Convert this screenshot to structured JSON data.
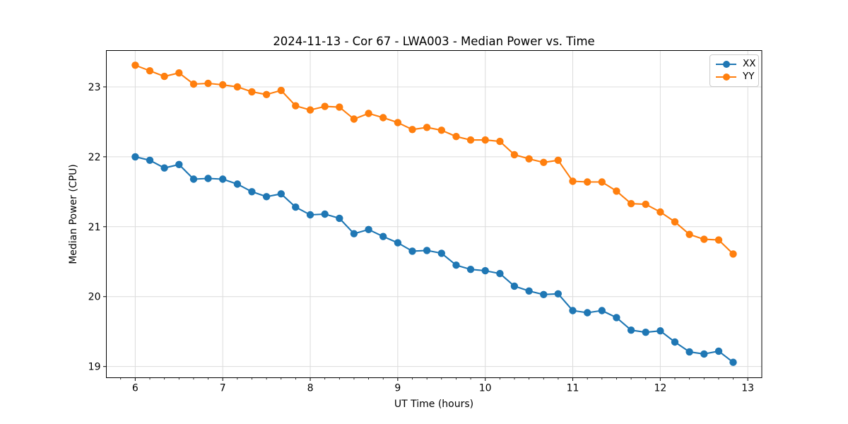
{
  "figure": {
    "background": "#ffffff"
  },
  "chart_data": {
    "type": "line",
    "title": "2024-11-13 - Cor 67 - LWA003 - Median Power vs. Time",
    "xlabel": "UT Time (hours)",
    "ylabel": "Median Power (CPU)",
    "xlim": [
      5.67,
      13.16
    ],
    "ylim": [
      18.84,
      23.52
    ],
    "x_ticks": [
      6,
      7,
      8,
      9,
      10,
      11,
      12,
      13
    ],
    "y_ticks": [
      19,
      20,
      21,
      22,
      23
    ],
    "x_minor_tick_step": 0.16667,
    "grid": true,
    "grid_color": "#dcdcdc",
    "axis_color": "#000000",
    "legend": {
      "position": "upper right",
      "entries": [
        "XX",
        "YY"
      ]
    },
    "x": [
      6.0,
      6.167,
      6.333,
      6.5,
      6.667,
      6.833,
      7.0,
      7.167,
      7.333,
      7.5,
      7.667,
      7.833,
      8.0,
      8.167,
      8.333,
      8.5,
      8.667,
      8.833,
      9.0,
      9.167,
      9.333,
      9.5,
      9.667,
      9.833,
      10.0,
      10.167,
      10.333,
      10.5,
      10.667,
      10.833,
      11.0,
      11.167,
      11.333,
      11.5,
      11.667,
      11.833,
      12.0,
      12.167,
      12.333,
      12.5,
      12.667,
      12.833
    ],
    "series": [
      {
        "name": "XX",
        "color": "#1f77b4",
        "marker": "circle",
        "values": [
          22.0,
          21.95,
          21.84,
          21.89,
          21.68,
          21.69,
          21.68,
          21.61,
          21.5,
          21.43,
          21.47,
          21.28,
          21.17,
          21.18,
          21.12,
          20.9,
          20.96,
          20.86,
          20.77,
          20.65,
          20.66,
          20.62,
          20.45,
          20.39,
          20.37,
          20.33,
          20.15,
          20.08,
          20.03,
          20.04,
          19.8,
          19.77,
          19.8,
          19.7,
          19.52,
          19.49,
          19.51,
          19.35,
          19.21,
          19.18,
          19.22,
          19.06
        ]
      },
      {
        "name": "YY",
        "color": "#ff7f0e",
        "marker": "circle",
        "values": [
          23.31,
          23.23,
          23.15,
          23.2,
          23.04,
          23.05,
          23.03,
          23.0,
          22.93,
          22.89,
          22.95,
          22.73,
          22.67,
          22.72,
          22.71,
          22.54,
          22.62,
          22.56,
          22.49,
          22.39,
          22.42,
          22.38,
          22.29,
          22.24,
          22.24,
          22.22,
          22.03,
          21.97,
          21.92,
          21.95,
          21.65,
          21.64,
          21.64,
          21.51,
          21.33,
          21.32,
          21.21,
          21.07,
          20.89,
          20.82,
          20.81,
          20.61
        ]
      }
    ]
  }
}
